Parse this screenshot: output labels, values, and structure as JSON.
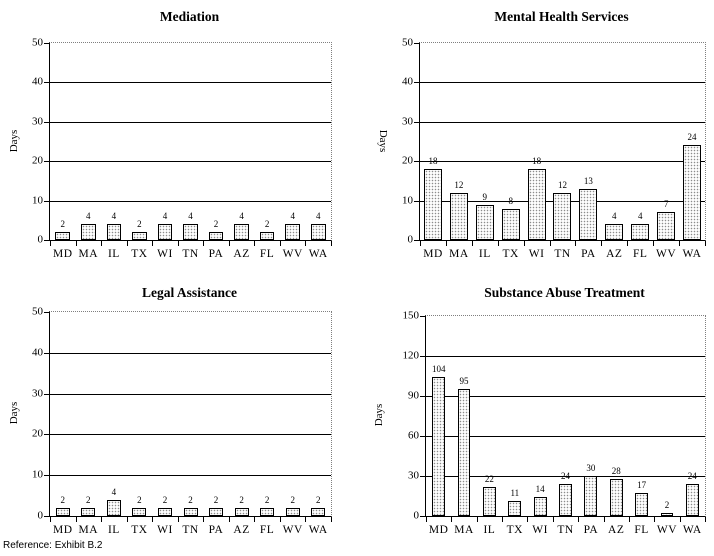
{
  "page": {
    "reference": "Reference: Exhibit B.2"
  },
  "chart_data": [
    {
      "type": "bar",
      "title": "Mediation",
      "ylabel": "Days",
      "xlabel": "",
      "categories": [
        "MD",
        "MA",
        "IL",
        "TX",
        "WI",
        "TN",
        "PA",
        "AZ",
        "FL",
        "WV",
        "WA"
      ],
      "values": [
        2,
        4,
        4,
        2,
        4,
        4,
        2,
        4,
        2,
        4,
        4
      ],
      "ylim": [
        0,
        50
      ],
      "yticks": [
        0,
        10,
        20,
        30,
        40,
        50
      ],
      "grid": true,
      "data_labels": true,
      "legend": "none",
      "ylabel_rotation": "bottom-to-top"
    },
    {
      "type": "bar",
      "title": "Mental Health Services",
      "ylabel": "Days",
      "xlabel": "",
      "categories": [
        "MD",
        "MA",
        "IL",
        "TX",
        "WI",
        "TN",
        "PA",
        "AZ",
        "FL",
        "WV",
        "WA"
      ],
      "values": [
        18,
        12,
        9,
        8,
        18,
        12,
        13,
        4,
        4,
        7,
        24
      ],
      "ylim": [
        0,
        50
      ],
      "yticks": [
        0,
        10,
        20,
        30,
        40,
        50
      ],
      "grid": true,
      "data_labels": true,
      "legend": "none",
      "ylabel_rotation": "top-to-bottom"
    },
    {
      "type": "bar",
      "title": "Legal Assistance",
      "ylabel": "Days",
      "xlabel": "",
      "categories": [
        "MD",
        "MA",
        "IL",
        "TX",
        "WI",
        "TN",
        "PA",
        "AZ",
        "FL",
        "WV",
        "WA"
      ],
      "values": [
        2,
        2,
        4,
        2,
        2,
        2,
        2,
        2,
        2,
        2,
        2
      ],
      "ylim": [
        0,
        50
      ],
      "yticks": [
        0,
        10,
        20,
        30,
        40,
        50
      ],
      "grid": true,
      "data_labels": true,
      "legend": "none",
      "ylabel_rotation": "bottom-to-top"
    },
    {
      "type": "bar",
      "title": "Substance Abuse Treatment",
      "ylabel": "Days",
      "xlabel": "",
      "categories": [
        "MD",
        "MA",
        "IL",
        "TX",
        "WI",
        "TN",
        "PA",
        "AZ",
        "FL",
        "WV",
        "WA"
      ],
      "values": [
        104,
        95,
        22,
        11,
        14,
        24,
        30,
        28,
        17,
        2,
        24
      ],
      "ylim": [
        0,
        150
      ],
      "yticks": [
        0,
        30,
        60,
        90,
        120,
        150
      ],
      "grid": true,
      "data_labels": true,
      "legend": "none",
      "ylabel_rotation": "bottom-to-top"
    }
  ]
}
